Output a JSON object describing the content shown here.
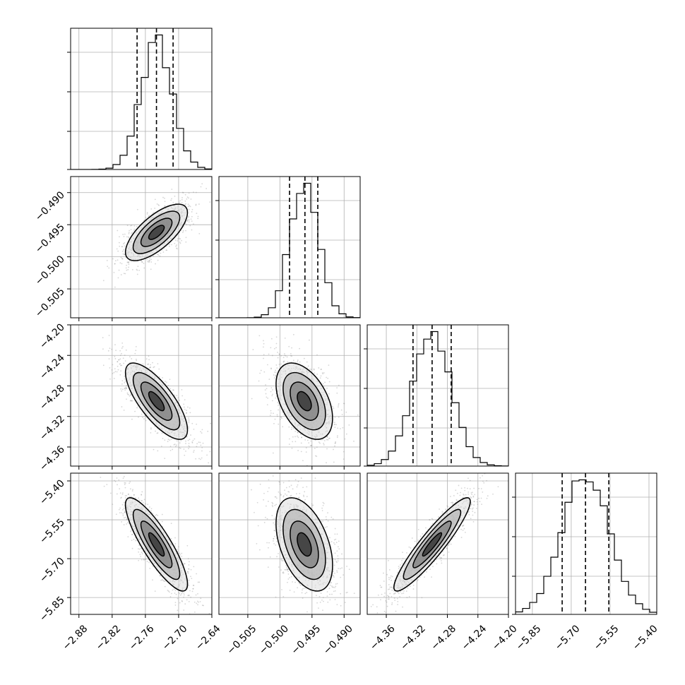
{
  "chart_data": {
    "type": "corner",
    "grid": true,
    "colors": {
      "line": "#000000",
      "grid": "#b0b0b0",
      "scatter": "#8a8a8a"
    },
    "parameters": [
      {
        "range": [
          -2.895,
          -2.64
        ],
        "ticks": [
          -2.88,
          -2.82,
          -2.76,
          -2.7,
          -2.64
        ],
        "tick_labels": [
          "−2.88",
          "−2.82",
          "−2.76",
          "−2.70",
          "−2.64"
        ],
        "quantiles": [
          -2.775,
          -2.74,
          -2.71
        ],
        "mean": -2.74,
        "std": 0.028
      },
      {
        "range": [
          -0.5095,
          -0.4875
        ],
        "ticks": [
          -0.505,
          -0.5,
          -0.495,
          -0.49
        ],
        "tick_labels": [
          "−0.505",
          "−0.500",
          "−0.495",
          "−0.490"
        ],
        "quantiles": [
          -0.4985,
          -0.4961,
          -0.4941
        ],
        "mean": -0.4962,
        "std": 0.0022
      },
      {
        "range": [
          -4.385,
          -4.2
        ],
        "ticks": [
          -4.36,
          -4.32,
          -4.28,
          -4.24,
          -4.2
        ],
        "tick_labels": [
          "−4.36",
          "−4.32",
          "−4.28",
          "−4.24",
          "−4.20"
        ],
        "quantiles": [
          -4.325,
          -4.3,
          -4.275
        ],
        "mean": -4.3,
        "std": 0.025
      },
      {
        "range": [
          -5.915,
          -5.37
        ],
        "ticks": [
          -5.85,
          -5.7,
          -5.55,
          -5.4
        ],
        "tick_labels": [
          "−5.85",
          "−5.70",
          "−5.55",
          "−5.40"
        ],
        "quantiles": [
          -5.735,
          -5.645,
          -5.555
        ],
        "mean": -5.645,
        "std": 0.09
      }
    ],
    "hist_rows": [
      {
        "row": 0,
        "y_ticks_count": 4
      },
      {
        "row": 1,
        "y_tick_labels": [
          "−0.490",
          "−0.495",
          "−0.500",
          "−0.505"
        ]
      },
      {
        "row": 2,
        "y_tick_labels": [
          "−4.20",
          "−4.24",
          "−4.28",
          "−4.32",
          "−4.36"
        ]
      },
      {
        "row": 3,
        "y_tick_labels": [
          "−5.40",
          "−5.55",
          "−5.70",
          "−5.85"
        ]
      }
    ],
    "correlations": {
      "1-0": 0.7,
      "2-0": -0.75,
      "2-1": -0.45,
      "3-0": -0.85,
      "3-1": -0.45,
      "3-2": 0.92
    },
    "contour_levels_sigma": [
      0.5,
      1.0,
      1.5,
      2.0
    ],
    "histogram_bins": 20
  }
}
